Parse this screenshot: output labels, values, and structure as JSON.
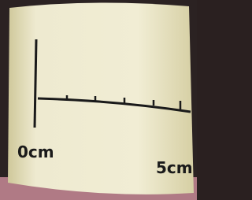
{
  "labels": {
    "start": "0cm",
    "end": "5cm"
  }
}
